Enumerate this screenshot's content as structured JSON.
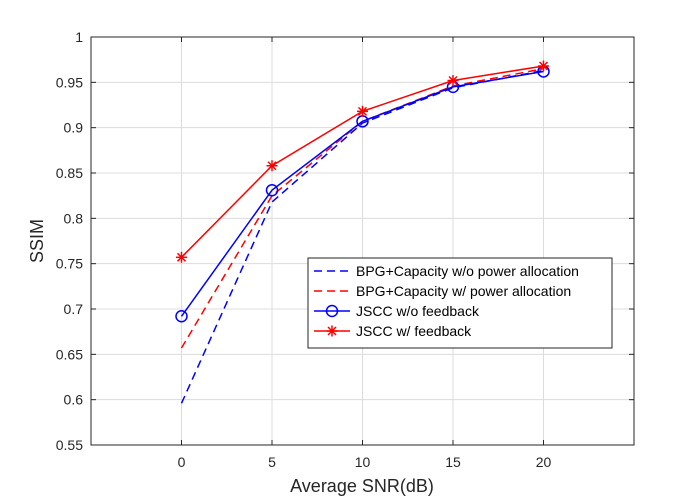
{
  "chart_data": {
    "type": "line",
    "title": "",
    "xlabel": "Average SNR(dB)",
    "ylabel": "SSIM",
    "x": [
      0,
      5,
      10,
      15,
      20
    ],
    "xlim": [
      -5,
      25
    ],
    "ylim": [
      0.55,
      1.0
    ],
    "xticks": [
      0,
      5,
      10,
      15,
      20
    ],
    "yticks": [
      0.55,
      0.6,
      0.65,
      0.7,
      0.75,
      0.8,
      0.85,
      0.9,
      0.95,
      1.0
    ],
    "xtick_labels": [
      "0",
      "5",
      "10",
      "15",
      "20"
    ],
    "ytick_labels": [
      "0.55",
      "0.6",
      "0.65",
      "0.7",
      "0.75",
      "0.8",
      "0.85",
      "0.9",
      "0.95",
      "1"
    ],
    "grid": true,
    "legend_position": "center-right",
    "series": [
      {
        "name": "BPG+Capacity w/o power allocation",
        "values": [
          0.596,
          0.818,
          0.905,
          0.944,
          0.963
        ],
        "color": "#0000ff",
        "dash": "dashed",
        "marker": "none"
      },
      {
        "name": "BPG+Capacity w/ power allocation",
        "values": [
          0.657,
          0.825,
          0.907,
          0.946,
          0.965
        ],
        "color": "#ff0000",
        "dash": "dashed",
        "marker": "none"
      },
      {
        "name": "JSCC w/o feedback",
        "values": [
          0.692,
          0.831,
          0.907,
          0.945,
          0.962
        ],
        "color": "#0000ff",
        "dash": "solid",
        "marker": "circle"
      },
      {
        "name": "JSCC w/ feedback",
        "values": [
          0.757,
          0.858,
          0.918,
          0.952,
          0.968
        ],
        "color": "#ff0000",
        "dash": "solid",
        "marker": "asterisk"
      }
    ]
  }
}
